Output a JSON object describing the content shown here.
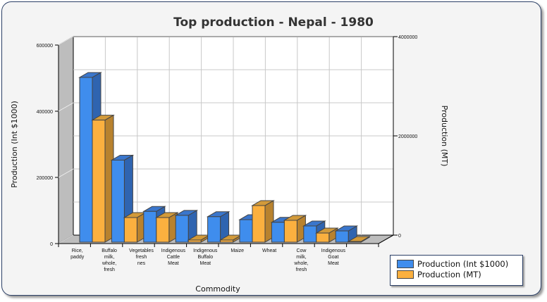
{
  "chart_data": {
    "type": "bar",
    "title": "Top production - Nepal - 1980",
    "xlabel": "Commodity",
    "ylabel": "Production (Int $1000)",
    "y2label": "Production (MT)",
    "ylim": [
      0,
      600000
    ],
    "y2lim": [
      0,
      4000000
    ],
    "yticks": [
      "0",
      "200000",
      "400000",
      "600000"
    ],
    "y2ticks": [
      "0",
      "2000000",
      "4000000"
    ],
    "categories": [
      [
        "Rice,",
        "paddy"
      ],
      [
        "Buffalo",
        "milk,",
        "whole,",
        "fresh"
      ],
      [
        "Vegetables",
        "fresh",
        "nes"
      ],
      [
        "Indigenous",
        "Cattle",
        "Meat"
      ],
      [
        "Indigenous",
        "Buffalo",
        "Meat"
      ],
      [
        "Maize"
      ],
      [
        "Wheat"
      ],
      [
        "Cow",
        "milk,",
        "whole,",
        "fresh"
      ],
      [
        "Indigenous",
        "Goat",
        "Meat"
      ]
    ],
    "series": [
      {
        "name": "Production (Int $1000)",
        "axis": "left",
        "color": "#3f8ded",
        "values": [
          498000,
          248000,
          93000,
          81000,
          77000,
          68000,
          60000,
          49000,
          34000
        ]
      },
      {
        "name": "Production (MT)",
        "axis": "right",
        "color": "#fbb03f",
        "values": [
          2460000,
          496000,
          496000,
          43000,
          43000,
          738000,
          440000,
          184000,
          14000
        ]
      }
    ],
    "legend": "bottom-right",
    "grid": true
  }
}
